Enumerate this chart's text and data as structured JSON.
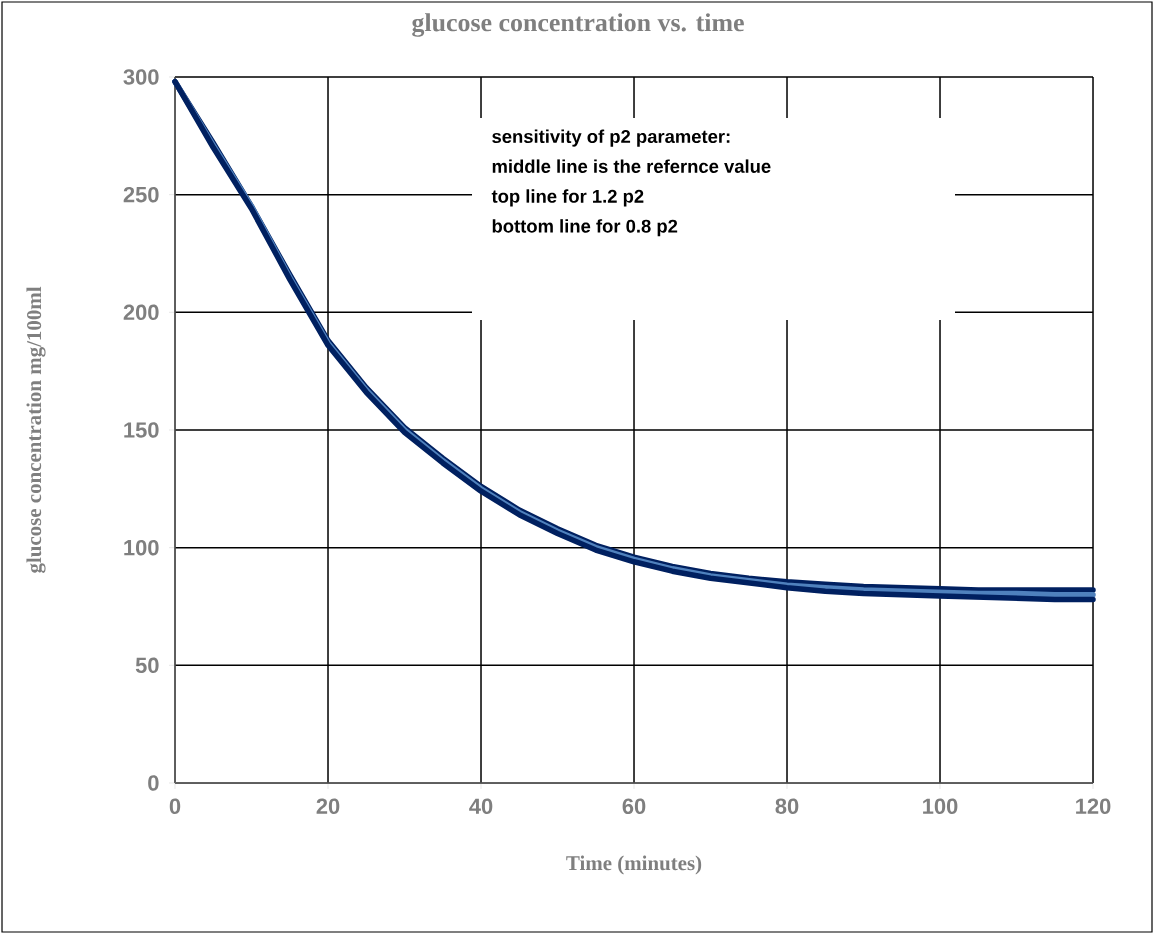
{
  "chart_data": {
    "type": "line",
    "title": "glucose concentration vs. time",
    "xlabel": "Time (minutes)",
    "ylabel": "glucose concentration mg/100ml",
    "annotations": [
      "sensitivity of p2 parameter:",
      "middle line is the refernce value",
      "top line for 1.2 p2",
      "bottom line for 0.8 p2"
    ],
    "x": [
      0,
      5,
      10,
      15,
      20,
      25,
      30,
      35,
      40,
      45,
      50,
      55,
      60,
      65,
      70,
      75,
      80,
      85,
      90,
      95,
      100,
      105,
      110,
      115,
      120
    ],
    "series": [
      {
        "color": "#002060",
        "values": [
          298,
          272,
          245,
          216,
          188,
          168,
          151,
          138,
          126,
          116,
          108,
          101,
          96,
          92,
          89,
          87,
          85.5,
          84.5,
          83.5,
          83,
          82.5,
          82,
          82,
          82,
          82
        ]
      },
      {
        "color": "#4f81bd",
        "values": [
          298,
          271,
          245,
          215,
          187,
          167,
          150,
          137,
          125,
          115,
          107,
          100,
          95,
          91,
          88,
          86,
          84,
          83,
          82,
          81.5,
          81,
          80.5,
          80.5,
          80,
          80
        ]
      },
      {
        "color": "#002060",
        "values": [
          298,
          270,
          244,
          214,
          186,
          166,
          149,
          136,
          124,
          114,
          106,
          99,
          94,
          90,
          87,
          85,
          83,
          81.5,
          80.5,
          80,
          79.5,
          79,
          78.5,
          78,
          78
        ]
      }
    ],
    "xlim": [
      0,
      120
    ],
    "ylim": [
      0,
      300
    ],
    "xticks": [
      0,
      20,
      40,
      60,
      80,
      100,
      120
    ],
    "yticks": [
      0,
      50,
      100,
      150,
      200,
      250,
      300
    ],
    "grid": true,
    "marker": "none",
    "line_style": "solid"
  }
}
